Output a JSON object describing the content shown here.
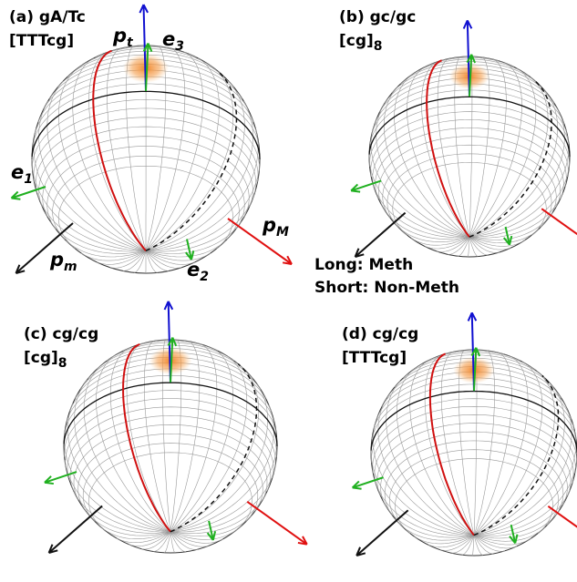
{
  "panels": [
    {
      "label": "(a) gA/Tc",
      "sequence": "[TTTcg]"
    },
    {
      "label": "(b) gc/gc",
      "sequence": "[cg]",
      "sequence_subscript": "8"
    },
    {
      "label": "(c) cg/cg",
      "sequence": "[cg]",
      "sequence_subscript": "8"
    },
    {
      "label": "(d) cg/cg",
      "sequence": "[TTTcg]"
    }
  ],
  "vector_labels": {
    "p_t": {
      "symbol": "p",
      "subscript": "t"
    },
    "e_3": {
      "symbol": "e",
      "subscript": "3"
    },
    "e_1": {
      "symbol": "e",
      "subscript": "1"
    },
    "p_M": {
      "symbol": "p",
      "subscript": "M"
    },
    "p_m": {
      "symbol": "p",
      "subscript": "m"
    },
    "e_2": {
      "symbol": "e",
      "subscript": "2"
    }
  },
  "legend": {
    "long": "Long: Meth",
    "short": "Short: Non-Meth"
  }
}
